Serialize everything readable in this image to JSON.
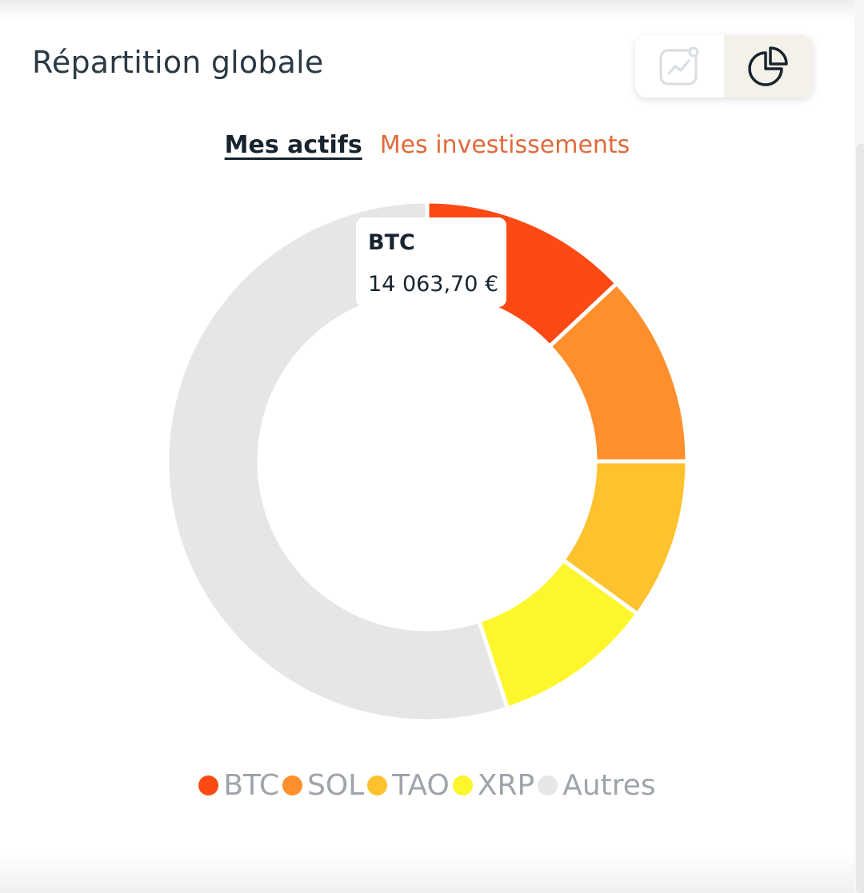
{
  "header": {
    "title": "Répartition globale",
    "toggle": {
      "options": [
        {
          "icon": "line-chart-icon",
          "active": false
        },
        {
          "icon": "pie-chart-icon",
          "active": true
        }
      ]
    }
  },
  "tabs": [
    {
      "label": "Mes actifs",
      "active": true
    },
    {
      "label": "Mes investissements",
      "active": false
    }
  ],
  "tooltip": {
    "title": "BTC",
    "value": "14 063,70 €"
  },
  "colors": {
    "accent": "#e2693b",
    "title": "#2b3a44",
    "btc": "#fd4a14",
    "sol": "#fd8f2d",
    "tao": "#fdc22d",
    "xrp": "#fdf62d",
    "autres": "#e6e6e6"
  },
  "chart_data": {
    "type": "pie",
    "donut": true,
    "categories": [
      "BTC",
      "SOL",
      "TAO",
      "XRP",
      "Autres"
    ],
    "values": [
      13,
      12,
      10,
      10,
      55
    ],
    "unit": "%",
    "colors": [
      "#fd4a14",
      "#fd8f2d",
      "#fdc22d",
      "#fdf62d",
      "#e6e6e6"
    ],
    "legend": "bottom"
  }
}
